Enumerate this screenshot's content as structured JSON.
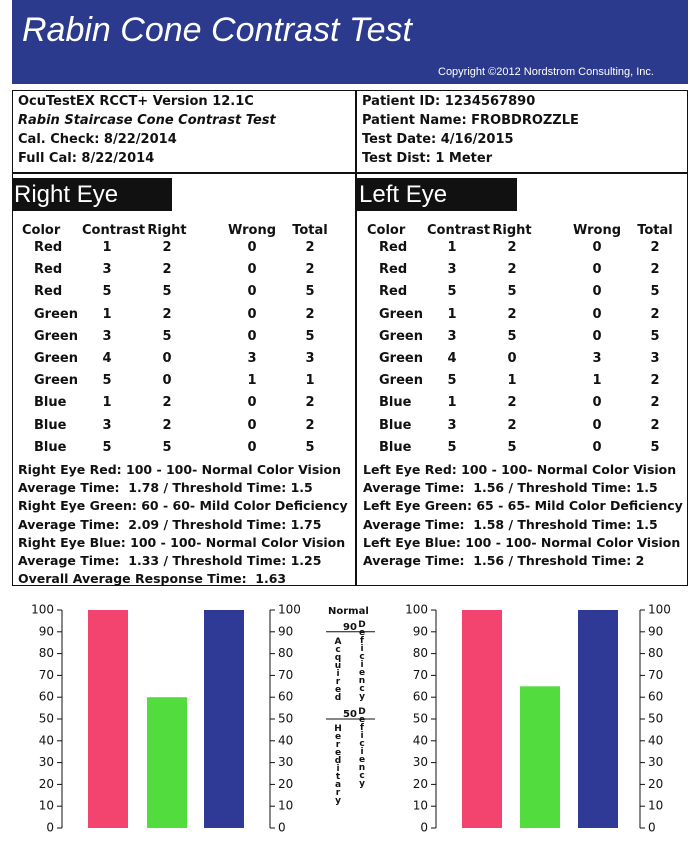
{
  "header": {
    "title": "Rabin Cone Contrast Test",
    "copyright": "Copyright ©2012 Nordstrom Consulting, Inc."
  },
  "info_left": [
    "OcuTestEX RCCT+ Version 12.1C",
    "Rabin Staircase Cone Contrast Test",
    "Cal. Check: 8/22/2014",
    "Full Cal: 8/22/2014"
  ],
  "info_right": [
    "Patient ID: 1234567890",
    "Patient Name: FROBDROZZLE",
    "Test Date: 4/16/2015",
    "Test Dist: 1 Meter"
  ],
  "right_eye": {
    "title": "Right Eye",
    "columns": [
      "Color",
      "Contrast",
      "Right",
      "Wrong",
      "Total"
    ],
    "rows": [
      [
        "Red",
        1,
        2,
        0,
        2
      ],
      [
        "Red",
        3,
        2,
        0,
        2
      ],
      [
        "Red",
        5,
        5,
        0,
        5
      ],
      [
        "Green",
        1,
        2,
        0,
        2
      ],
      [
        "Green",
        3,
        5,
        0,
        5
      ],
      [
        "Green",
        4,
        0,
        3,
        3
      ],
      [
        "Green",
        5,
        0,
        1,
        1
      ],
      [
        "Blue",
        1,
        2,
        0,
        2
      ],
      [
        "Blue",
        3,
        2,
        0,
        2
      ],
      [
        "Blue",
        5,
        5,
        0,
        5
      ]
    ],
    "summary": [
      "Right Eye Red: 100 - 100- Normal Color Vision",
      "Average Time:  1.78 / Threshold Time: 1.5",
      "Right Eye Green: 60 - 60- Mild Color Deficiency",
      "Average Time:  2.09 / Threshold Time: 1.75",
      "Right Eye Blue: 100 - 100- Normal Color Vision",
      "Average Time:  1.33 / Threshold Time: 1.25",
      "Overall Average Response Time:  1.63"
    ]
  },
  "left_eye": {
    "title": "Left Eye",
    "columns": [
      "Color",
      "Contrast",
      "Right",
      "Wrong",
      "Total"
    ],
    "rows": [
      [
        "Red",
        1,
        2,
        0,
        2
      ],
      [
        "Red",
        3,
        2,
        0,
        2
      ],
      [
        "Red",
        5,
        5,
        0,
        5
      ],
      [
        "Green",
        1,
        2,
        0,
        2
      ],
      [
        "Green",
        3,
        5,
        0,
        5
      ],
      [
        "Green",
        4,
        0,
        3,
        3
      ],
      [
        "Green",
        5,
        1,
        1,
        2
      ],
      [
        "Blue",
        1,
        2,
        0,
        2
      ],
      [
        "Blue",
        3,
        2,
        0,
        2
      ],
      [
        "Blue",
        5,
        5,
        0,
        5
      ]
    ],
    "summary": [
      "Left Eye Red: 100 - 100- Normal Color Vision",
      "Average Time:  1.56 / Threshold Time: 1.5",
      "Left Eye Green: 65 - 65- Mild Color Deficiency",
      "Average Time:  1.58 / Threshold Time: 1.5",
      "Left Eye Blue: 100 - 100- Normal Color Vision",
      "Average Time:  1.56 / Threshold Time: 2"
    ]
  },
  "chart_data": [
    {
      "type": "bar",
      "categories": [
        null,
        null,
        null
      ],
      "values": [
        100,
        60,
        100
      ],
      "colors": [
        "#f2446f",
        "#52dc3e",
        "#2e3a96"
      ],
      "ylim": [
        0,
        100
      ],
      "yticks": [
        0,
        10,
        20,
        30,
        40,
        50,
        60,
        70,
        80,
        90,
        100
      ],
      "y2lim": [
        0,
        100
      ],
      "y2ticks": [
        0,
        10,
        20,
        30,
        40,
        50,
        60,
        70,
        80,
        90,
        100
      ]
    },
    {
      "type": "bar",
      "categories": [
        null,
        null,
        null
      ],
      "values": [
        100,
        65,
        100
      ],
      "colors": [
        "#f2446f",
        "#52dc3e",
        "#2e3a96"
      ],
      "ylim": [
        0,
        100
      ],
      "yticks": [
        0,
        10,
        20,
        30,
        40,
        50,
        60,
        70,
        80,
        90,
        100
      ],
      "y2lim": [
        0,
        100
      ],
      "y2ticks": [
        0,
        10,
        20,
        30,
        40,
        50,
        60,
        70,
        80,
        90,
        100
      ]
    }
  ],
  "scale_legend": {
    "normal": "Normal",
    "acquired_threshold": 90,
    "acquired": "Acquired",
    "acquired_deficiency": "Deficiency",
    "hereditary_threshold": 50,
    "hereditary": "Hereditary",
    "hereditary_deficiency": "Deficiency"
  }
}
